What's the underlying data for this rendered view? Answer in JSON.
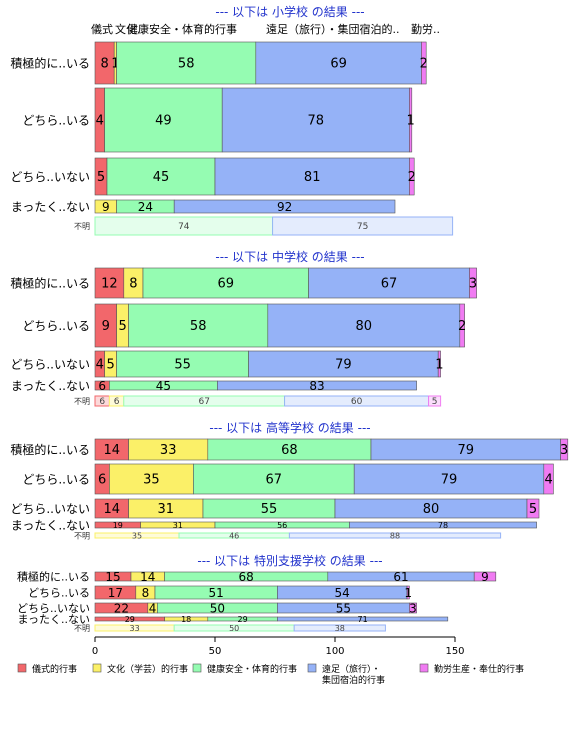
{
  "series": [
    {
      "name": "儀式的行事",
      "color": "#f2676b"
    },
    {
      "name": "文化（学芸）的行事",
      "color": "#fbf068"
    },
    {
      "name": "健康安全・体育的行事",
      "color": "#95fcb2"
    },
    {
      "name": "遠足（旅行）・集団宿泊的行事",
      "color": "#95b2f7"
    },
    {
      "name": "勤労生産・奉仕的行事",
      "color": "#f07bf2"
    }
  ],
  "column_headers": [
    "儀式",
    "文化..",
    "健康安全・体育的行事",
    "遠足（旅行）・集団宿泊的..",
    "勤労.."
  ],
  "legend": [
    {
      "label": "儀式的行事",
      "color": "#f2676b"
    },
    {
      "label": "文化（学芸）的行事",
      "color": "#fbf068"
    },
    {
      "label": "健康安全・体育的行事",
      "color": "#95fcb2"
    },
    {
      "label_line1": "遠足（旅行）・",
      "label_line2": "集団宿泊的行事",
      "color": "#95b2f7"
    },
    {
      "label": "勤労生産・奉仕的行事",
      "color": "#f07bf2"
    }
  ],
  "chart_data": {
    "type": "bar",
    "orientation": "horizontal",
    "stacked": true,
    "xlim": [
      0,
      200
    ],
    "x_ticks": [
      "0",
      "50",
      "100",
      "150"
    ],
    "x_tick_values": [
      0,
      50,
      100,
      150
    ],
    "panels": [
      {
        "title": "--- 以下は 小学校 の結果 ---",
        "categories": [
          "積極的に..いる",
          "どちら..いる",
          "どちら..いない",
          "まったく..ない",
          "不明"
        ],
        "values": [
          [
            8,
            1,
            58,
            69,
            2
          ],
          [
            4,
            0,
            49,
            78,
            1
          ],
          [
            5,
            0,
            45,
            81,
            2
          ],
          [
            0,
            9,
            24,
            92,
            0
          ],
          [
            0,
            0,
            74,
            75,
            0
          ]
        ]
      },
      {
        "title": "--- 以下は 中学校 の結果 ---",
        "categories": [
          "積極的に..いる",
          "どちら..いる",
          "どちら..いない",
          "まったく..ない",
          "不明"
        ],
        "values": [
          [
            12,
            8,
            69,
            67,
            3
          ],
          [
            9,
            5,
            58,
            80,
            2
          ],
          [
            4,
            5,
            55,
            79,
            1
          ],
          [
            6,
            0,
            45,
            83,
            0
          ],
          [
            6,
            6,
            67,
            60,
            5
          ]
        ]
      },
      {
        "title": "--- 以下は 高等学校 の結果 ---",
        "categories": [
          "積極的に..いる",
          "どちら..いる",
          "どちら..いない",
          "まったく..ない",
          "不明"
        ],
        "values": [
          [
            14,
            33,
            68,
            79,
            3
          ],
          [
            6,
            35,
            67,
            79,
            4
          ],
          [
            14,
            31,
            55,
            80,
            5
          ],
          [
            19,
            31,
            56,
            78,
            0
          ],
          [
            0,
            35,
            46,
            88,
            0
          ]
        ]
      },
      {
        "title": "--- 以下は 特別支援学校 の結果 ---",
        "categories": [
          "積極的に..いる",
          "どちら..いる",
          "どちら..いない",
          "まったく..ない",
          "不明"
        ],
        "values": [
          [
            15,
            14,
            68,
            61,
            9
          ],
          [
            17,
            8,
            51,
            54,
            1
          ],
          [
            22,
            4,
            50,
            55,
            3
          ],
          [
            29,
            18,
            29,
            71,
            0
          ],
          [
            0,
            33,
            50,
            38,
            0
          ]
        ]
      }
    ]
  }
}
